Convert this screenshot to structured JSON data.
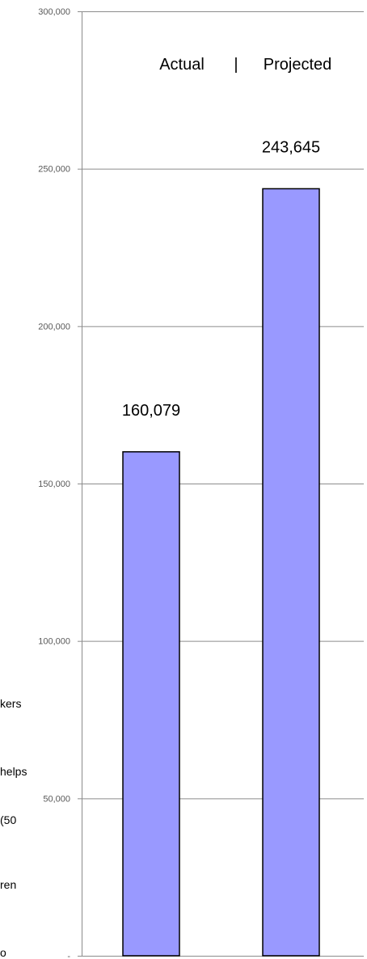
{
  "chart_data": {
    "type": "bar",
    "categories": [
      "Actual",
      "Projected"
    ],
    "values": [
      160079,
      243645
    ],
    "value_labels": [
      "160,079",
      "243,645"
    ],
    "header_left": "Actual",
    "header_separator": "|",
    "header_right": "Projected",
    "ylim": [
      0,
      300000
    ],
    "y_ticks": [
      0,
      50000,
      100000,
      150000,
      200000,
      250000,
      300000
    ],
    "y_tick_labels": [
      "-",
      "50,000",
      "100,000",
      "150,000",
      "200,000",
      "250,000",
      "300,000"
    ],
    "grid": true,
    "title": "",
    "xlabel": "",
    "ylabel": "",
    "colors": {
      "bar_fill": "#9999ff",
      "bar_stroke": "#000000",
      "grid": "#8c8c8c",
      "axis": "#8c8c8c"
    }
  },
  "left_fragments": [
    "kers",
    "helps",
    "(50",
    "ren",
    "o"
  ]
}
